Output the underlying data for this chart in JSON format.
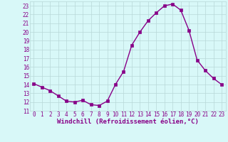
{
  "x": [
    0,
    1,
    2,
    3,
    4,
    5,
    6,
    7,
    8,
    9,
    10,
    11,
    12,
    13,
    14,
    15,
    16,
    17,
    18,
    19,
    20,
    21,
    22,
    23
  ],
  "y": [
    14.1,
    13.7,
    13.3,
    12.7,
    12.1,
    12.0,
    12.2,
    11.7,
    11.6,
    12.1,
    14.0,
    15.5,
    18.5,
    20.0,
    21.3,
    22.2,
    23.0,
    23.2,
    22.5,
    20.2,
    16.8,
    15.6,
    14.7,
    14.0
  ],
  "line_color": "#880088",
  "marker": "s",
  "marker_size": 2.5,
  "background_color": "#d8f8f8",
  "grid_color": "#b8d8d8",
  "xlabel": "Windchill (Refroidissement éolien,°C)",
  "ylim": [
    11,
    23.5
  ],
  "yticks": [
    11,
    12,
    13,
    14,
    15,
    16,
    17,
    18,
    19,
    20,
    21,
    22,
    23
  ],
  "xticks": [
    0,
    1,
    2,
    3,
    4,
    5,
    6,
    7,
    8,
    9,
    10,
    11,
    12,
    13,
    14,
    15,
    16,
    17,
    18,
    19,
    20,
    21,
    22,
    23
  ],
  "tick_fontsize": 5.5,
  "xlabel_fontsize": 6.5,
  "axis_color": "#880088"
}
